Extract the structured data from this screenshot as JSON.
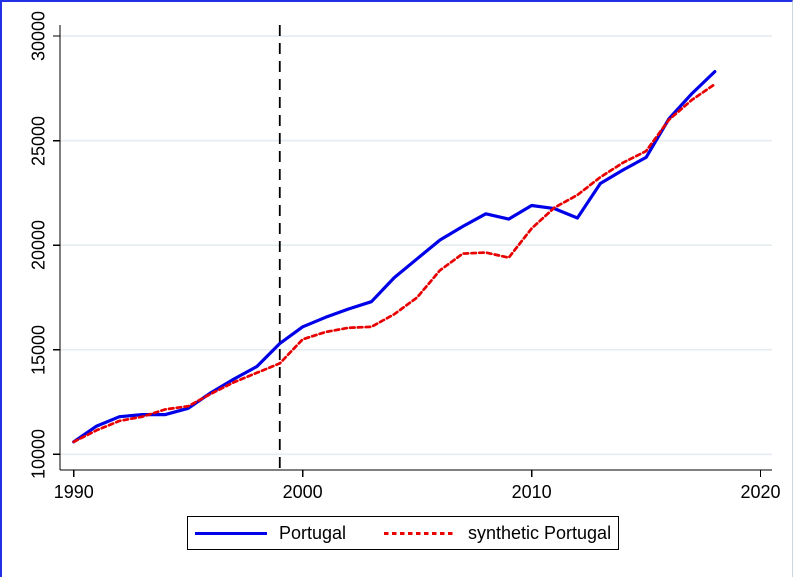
{
  "chart_data": {
    "type": "line",
    "title": "",
    "xlabel": "",
    "ylabel": "",
    "grid": true,
    "gridline_color": "#e4ecf1",
    "legend_position": "bottom-center",
    "x_range": [
      1989.4,
      2020.5
    ],
    "y_range": [
      9250,
      30530
    ],
    "x_ticks": [
      1990,
      2000,
      2010,
      2020
    ],
    "y_ticks": [
      10000,
      15000,
      20000,
      25000,
      30000
    ],
    "treatment_line": {
      "x": 1999,
      "style": "dashed",
      "color": "#000000"
    },
    "x": [
      1990,
      1991,
      1992,
      1993,
      1994,
      1995,
      1996,
      1997,
      1998,
      1999,
      2000,
      2001,
      2002,
      2003,
      2004,
      2005,
      2006,
      2007,
      2008,
      2009,
      2010,
      2011,
      2012,
      2013,
      2014,
      2015,
      2016,
      2017,
      2018
    ],
    "series": [
      {
        "name": "Portugal",
        "color": "#0000e8",
        "style": "solid",
        "values": [
          10600,
          11350,
          11800,
          11900,
          11900,
          12200,
          12950,
          13600,
          14200,
          15300,
          16100,
          16550,
          16950,
          17300,
          18450,
          19350,
          20250,
          20900,
          21500,
          21250,
          21900,
          21750,
          21300,
          22950,
          23600,
          24200,
          26050,
          27250,
          28300
        ]
      },
      {
        "name": "synthetic Portugal",
        "color": "#e80000",
        "style": "dashed",
        "values": [
          10600,
          11150,
          11600,
          11800,
          12150,
          12300,
          12900,
          13450,
          13900,
          14350,
          15500,
          15850,
          16050,
          16100,
          16700,
          17500,
          18800,
          19600,
          19650,
          19400,
          20800,
          21800,
          22400,
          23250,
          23950,
          24500,
          26000,
          26950,
          27700
        ]
      }
    ]
  }
}
